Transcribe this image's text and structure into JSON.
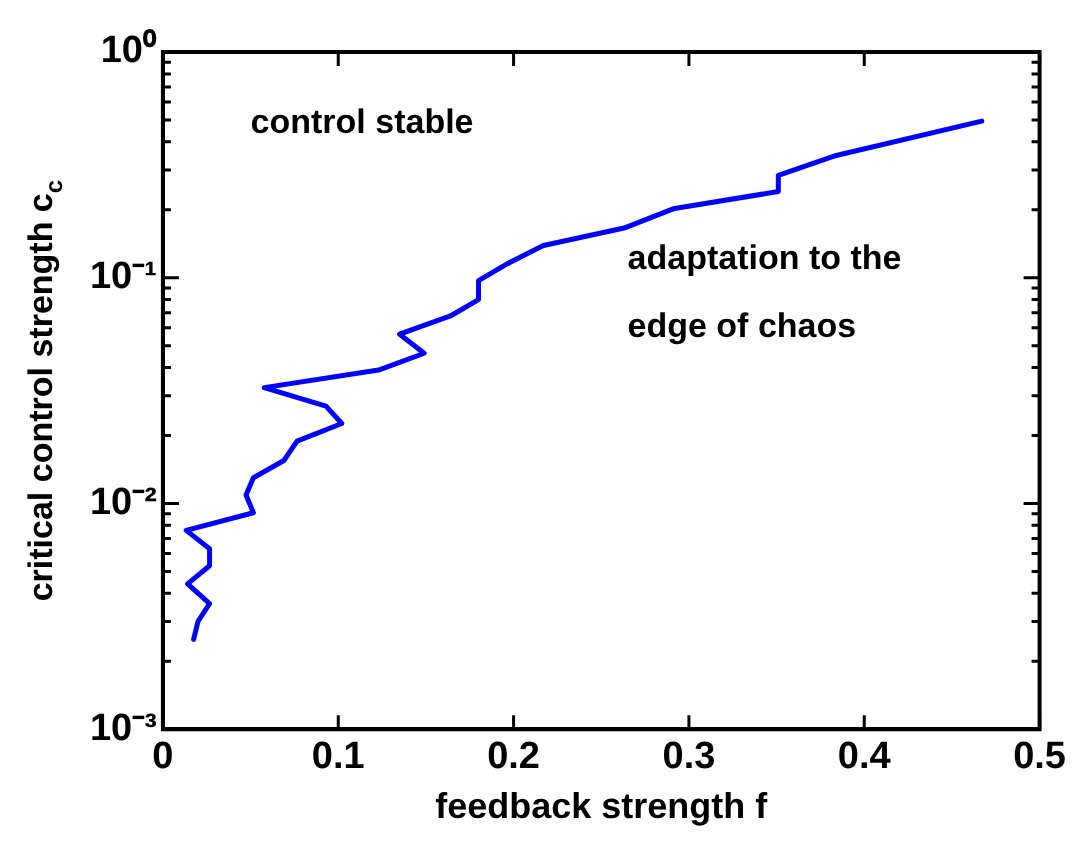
{
  "chart_data": {
    "type": "line",
    "xlabel": "feedback strength f",
    "ylabel": "critical control strength c$_{c}$",
    "x": [
      0.0175,
      0.02,
      0.0266,
      0.0141,
      0.0266,
      0.0266,
      0.0133,
      0.0516,
      0.0474,
      0.0516,
      0.069,
      0.0765,
      0.102,
      0.093,
      0.0578,
      0.123,
      0.149,
      0.135,
      0.164,
      0.18,
      0.18,
      0.197,
      0.217,
      0.263,
      0.291,
      0.351,
      0.351,
      0.384,
      0.467
    ],
    "series": [
      {
        "color": "#0000ff",
        "values": [
          0.0025,
          0.003,
          0.0036,
          0.0044,
          0.0053,
          0.0063,
          0.0076,
          0.0091,
          0.0109,
          0.013,
          0.0155,
          0.0189,
          0.0226,
          0.027,
          0.0326,
          0.039,
          0.0463,
          0.0562,
          0.0677,
          0.08,
          0.097,
          0.116,
          0.139,
          0.166,
          0.202,
          0.241,
          0.284,
          0.348,
          0.494
        ]
      }
    ],
    "xlim": [
      0,
      0.5
    ],
    "xticks": [
      0,
      0.1,
      0.2,
      0.3,
      0.4,
      0.5
    ],
    "log": "y",
    "ylim": [
      0.001,
      1
    ],
    "yticks": [
      {
        "value": 0.001,
        "label": "10⁻³"
      },
      {
        "value": 0.01,
        "label": "10⁻²"
      },
      {
        "value": 0.1,
        "label": "10⁻¹"
      },
      {
        "value": 1,
        "label": "10⁰"
      }
    ],
    "annotations": [
      "control stable",
      "adaptation to the\nedge of chaos"
    ],
    "grid": false,
    "legend": false,
    "marker": "none",
    "line_style": "solid"
  }
}
